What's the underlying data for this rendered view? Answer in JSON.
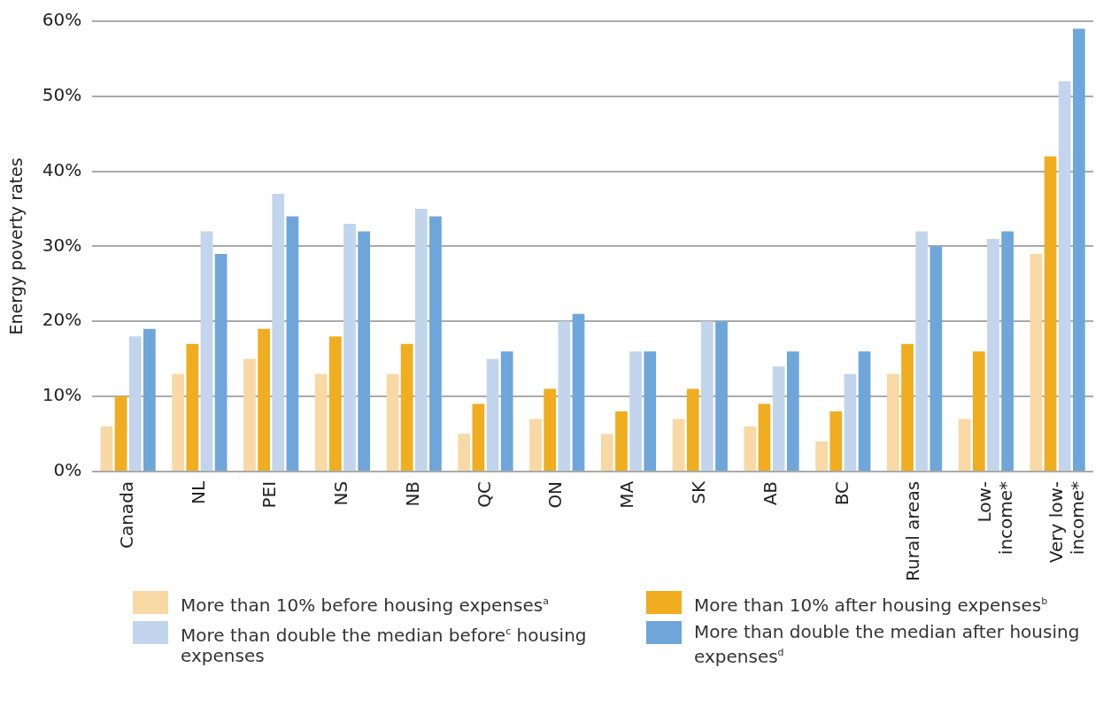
{
  "chart_data": {
    "type": "bar",
    "ylabel": "Energy poverty rates",
    "categories": [
      "Canada",
      "NL",
      "PEI",
      "NS",
      "NB",
      "QC",
      "ON",
      "MA",
      "SK",
      "AB",
      "BC",
      "Rural areas",
      "Low-income*",
      "Very low-income*"
    ],
    "series": [
      {
        "name": "More than 10% before housing expenses$^{a}$",
        "color": "#f8d8a4",
        "values": [
          6,
          13,
          15,
          13,
          13,
          5,
          7,
          5,
          7,
          6,
          4,
          13,
          7,
          29
        ]
      },
      {
        "name": "More than 10% after housing expenses$^{b}$",
        "color": "#efad1f",
        "values": [
          10,
          17,
          19,
          18,
          17,
          9,
          11,
          8,
          11,
          9,
          8,
          17,
          16,
          42
        ]
      },
      {
        "name": "More than double the median before$^{c}$ housing expenses",
        "color": "#c3d5ec",
        "values": [
          18,
          32,
          37,
          33,
          35,
          15,
          20,
          16,
          20,
          14,
          13,
          32,
          31,
          52
        ]
      },
      {
        "name": "More than double the median after housing expenses$^{d}$",
        "color": "#6fa6da",
        "values": [
          19,
          29,
          34,
          32,
          34,
          16,
          21,
          16,
          20,
          16,
          16,
          30,
          32,
          59
        ]
      }
    ],
    "ylim": [
      0,
      60
    ],
    "yticks": [
      {
        "value": 0,
        "label": "0%"
      },
      {
        "value": 10,
        "label": "10%"
      },
      {
        "value": 20,
        "label": "20%"
      },
      {
        "value": 30,
        "label": "30%"
      },
      {
        "value": 40,
        "label": "40%"
      },
      {
        "value": 50,
        "label": "50%"
      },
      {
        "value": 60,
        "label": "60%"
      }
    ],
    "grid": "y",
    "legend": "bottom"
  }
}
